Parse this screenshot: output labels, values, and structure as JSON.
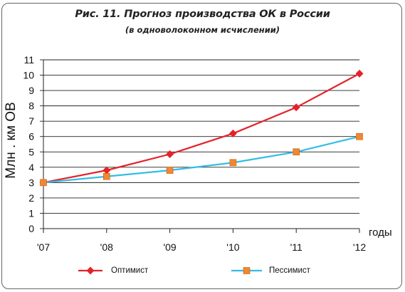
{
  "chart_data": {
    "type": "line",
    "title": "Рис. 11. Прогноз производства ОК в России",
    "subtitle": "(в одноволоконном исчислении)",
    "ylabel": "Млн . км ОВ",
    "xlabel": "годы",
    "categories": [
      "'07",
      "'08",
      "'09",
      "'10",
      "'11",
      "'12"
    ],
    "ylim": [
      0,
      11
    ],
    "yticks": [
      0,
      1,
      2,
      3,
      4,
      5,
      6,
      7,
      8,
      9,
      10,
      11
    ],
    "grid": true,
    "legend_position": "bottom",
    "series": [
      {
        "name": "Оптимист",
        "color": "#e3222a",
        "marker": "diamond",
        "marker_color": "#e3222a",
        "values": [
          3.0,
          3.8,
          4.85,
          6.2,
          7.9,
          10.1
        ]
      },
      {
        "name": "Пессимист",
        "color": "#33bde6",
        "marker": "square",
        "marker_color": "#f08830",
        "values": [
          3.0,
          3.4,
          3.8,
          4.3,
          5.0,
          6.0
        ]
      }
    ]
  }
}
